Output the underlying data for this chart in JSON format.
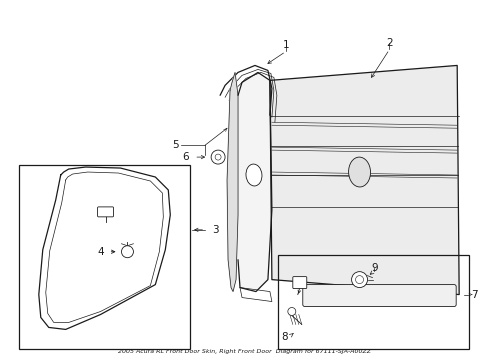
{
  "bg_color": "#ffffff",
  "line_color": "#1a1a1a",
  "fig_width": 4.89,
  "fig_height": 3.6,
  "dpi": 100,
  "label_fs": 7.5,
  "thin_lw": 0.5,
  "med_lw": 0.9,
  "thick_lw": 1.2
}
